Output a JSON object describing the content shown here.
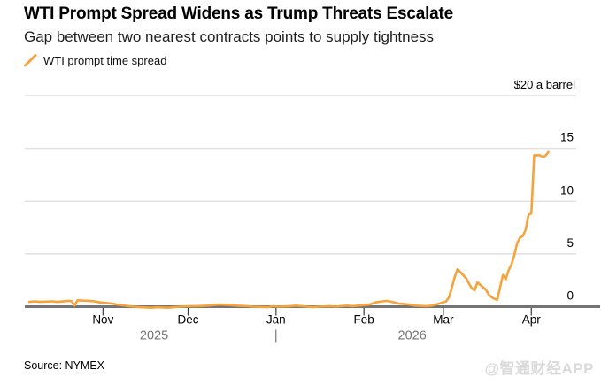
{
  "header": {
    "title": "WTI Prompt Spread Widens as Trump Threats Escalate",
    "subtitle": "Gap between two nearest contracts points to supply tightness"
  },
  "legend": {
    "items": [
      {
        "label": "WTI prompt time spread",
        "marker": "orange-slash-icon",
        "color": "#f6a33b"
      }
    ]
  },
  "footer": {
    "source": "Source: NYMEX",
    "watermark": "@智通财经APP"
  },
  "colors": {
    "line": "#f6a33b",
    "grid": "#e1e1e1",
    "axis": "#747474",
    "year_text": "#757575",
    "watermark": "#dadada"
  },
  "chart_data": {
    "type": "line",
    "title": "WTI Prompt Spread Widens as Trump Threats Escalate",
    "subtitle": "Gap between two nearest contracts points to supply tightness",
    "unit_label": "$20 a barrel",
    "ylabel": "$ a barrel",
    "ylim": [
      0,
      20
    ],
    "grid": "horizontal",
    "legend_position": "top-left",
    "yticks": [
      {
        "value": 0,
        "label": "0"
      },
      {
        "value": 5,
        "label": "5"
      },
      {
        "value": 10,
        "label": "10"
      },
      {
        "value": 15,
        "label": "15"
      },
      {
        "value": 20,
        "label": "$20 a barrel"
      }
    ],
    "x_ticks": [
      {
        "date": "2025-11-01",
        "label": "Nov"
      },
      {
        "date": "2025-12-01",
        "label": "Dec"
      },
      {
        "date": "2026-01-01",
        "label": "Jan"
      },
      {
        "date": "2026-02-01",
        "label": "Feb"
      },
      {
        "date": "2026-03-01",
        "label": "Mar"
      },
      {
        "date": "2026-04-01",
        "label": "Apr"
      }
    ],
    "year_labels": [
      {
        "date": "2025-11-19",
        "label": "2025"
      },
      {
        "date": "2026-01-01",
        "label": "|"
      },
      {
        "date": "2026-02-18",
        "label": "2026"
      }
    ],
    "series": [
      {
        "name": "WTI prompt time spread",
        "color": "#f6a33b",
        "points": [
          [
            "2025-10-06",
            0.45
          ],
          [
            "2025-10-08",
            0.5
          ],
          [
            "2025-10-10",
            0.45
          ],
          [
            "2025-10-14",
            0.5
          ],
          [
            "2025-10-16",
            0.45
          ],
          [
            "2025-10-20",
            0.55
          ],
          [
            "2025-10-21",
            0.5
          ],
          [
            "2025-10-22",
            0.1
          ],
          [
            "2025-10-23",
            0.6
          ],
          [
            "2025-10-27",
            0.55
          ],
          [
            "2025-10-29",
            0.5
          ],
          [
            "2025-10-31",
            0.4
          ],
          [
            "2025-11-04",
            0.3
          ],
          [
            "2025-11-06",
            0.2
          ],
          [
            "2025-11-10",
            0.05
          ],
          [
            "2025-11-12",
            0.0
          ],
          [
            "2025-11-14",
            -0.05
          ],
          [
            "2025-11-18",
            -0.1
          ],
          [
            "2025-11-20",
            -0.05
          ],
          [
            "2025-11-24",
            -0.1
          ],
          [
            "2025-11-26",
            -0.05
          ],
          [
            "2025-11-28",
            0.0
          ],
          [
            "2025-12-02",
            0.05
          ],
          [
            "2025-12-04",
            0.05
          ],
          [
            "2025-12-08",
            0.1
          ],
          [
            "2025-12-10",
            0.15
          ],
          [
            "2025-12-12",
            0.2
          ],
          [
            "2025-12-16",
            0.15
          ],
          [
            "2025-12-18",
            0.1
          ],
          [
            "2025-12-22",
            0.05
          ],
          [
            "2025-12-24",
            0.0
          ],
          [
            "2025-12-29",
            -0.05
          ],
          [
            "2025-12-31",
            0.05
          ],
          [
            "2026-01-02",
            0.0
          ],
          [
            "2026-01-06",
            0.05
          ],
          [
            "2026-01-08",
            0.1
          ],
          [
            "2026-01-12",
            0.0
          ],
          [
            "2026-01-14",
            -0.05
          ],
          [
            "2026-01-16",
            0.0
          ],
          [
            "2026-01-20",
            0.05
          ],
          [
            "2026-01-22",
            0.0
          ],
          [
            "2026-01-26",
            0.1
          ],
          [
            "2026-01-28",
            0.05
          ],
          [
            "2026-01-30",
            0.1
          ],
          [
            "2026-02-03",
            0.2
          ],
          [
            "2026-02-05",
            0.4
          ],
          [
            "2026-02-09",
            0.55
          ],
          [
            "2026-02-11",
            0.45
          ],
          [
            "2026-02-13",
            0.3
          ],
          [
            "2026-02-17",
            0.2
          ],
          [
            "2026-02-19",
            0.1
          ],
          [
            "2026-02-23",
            0.05
          ],
          [
            "2026-02-25",
            0.1
          ],
          [
            "2026-02-27",
            0.25
          ],
          [
            "2026-03-02",
            0.5
          ],
          [
            "2026-03-03",
            0.9
          ],
          [
            "2026-03-04",
            1.8
          ],
          [
            "2026-03-05",
            2.8
          ],
          [
            "2026-03-06",
            3.55
          ],
          [
            "2026-03-09",
            2.7
          ],
          [
            "2026-03-10",
            2.2
          ],
          [
            "2026-03-11",
            1.75
          ],
          [
            "2026-03-12",
            1.55
          ],
          [
            "2026-03-13",
            2.3
          ],
          [
            "2026-03-16",
            1.6
          ],
          [
            "2026-03-17",
            1.15
          ],
          [
            "2026-03-18",
            0.9
          ],
          [
            "2026-03-19",
            0.75
          ],
          [
            "2026-03-20",
            0.65
          ],
          [
            "2026-03-22",
            3.0
          ],
          [
            "2026-03-23",
            2.6
          ],
          [
            "2026-03-24",
            3.45
          ],
          [
            "2026-03-25",
            4.0
          ],
          [
            "2026-03-26",
            4.85
          ],
          [
            "2026-03-27",
            6.0
          ],
          [
            "2026-03-28",
            6.55
          ],
          [
            "2026-03-29",
            6.7
          ],
          [
            "2026-03-30",
            7.3
          ],
          [
            "2026-03-31",
            8.7
          ],
          [
            "2026-04-01",
            8.85
          ],
          [
            "2026-04-02",
            14.35
          ],
          [
            "2026-04-04",
            14.35
          ],
          [
            "2026-04-05",
            14.2
          ],
          [
            "2026-04-06",
            14.3
          ],
          [
            "2026-04-07",
            14.65
          ]
        ]
      }
    ]
  }
}
